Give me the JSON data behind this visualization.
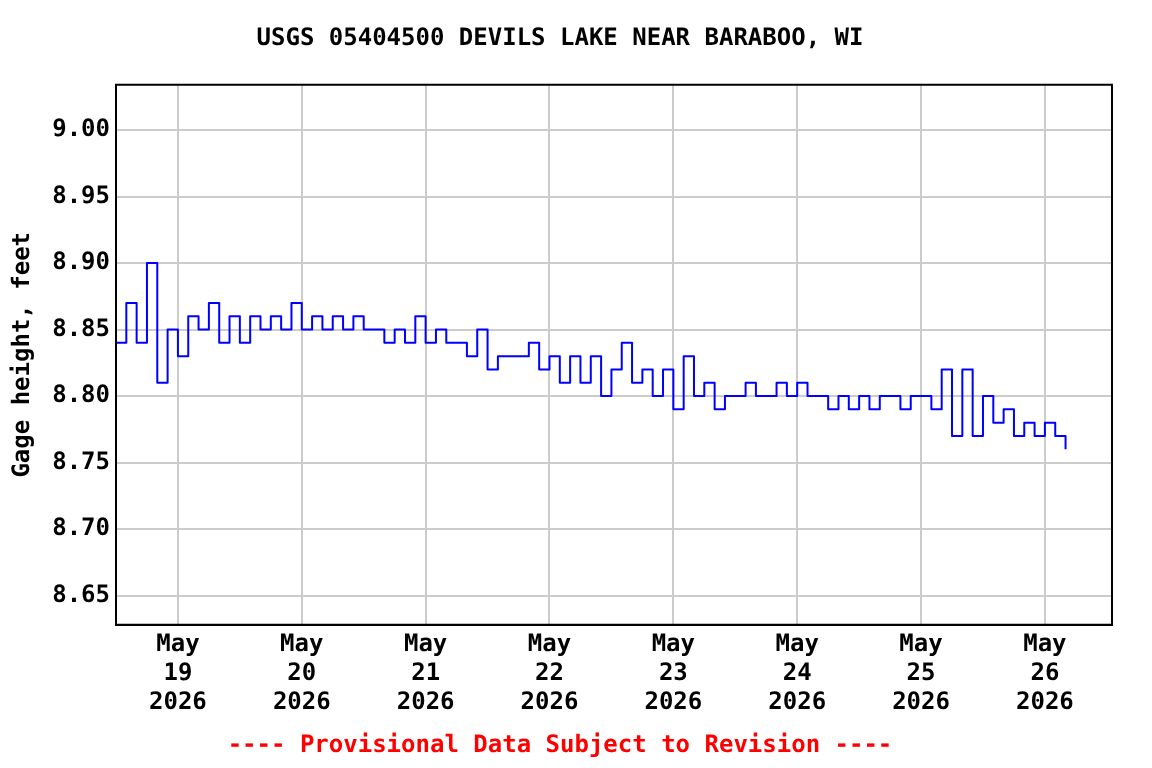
{
  "chart_data": {
    "type": "step",
    "title": "USGS 05404500 DEVILS LAKE NEAR BARABOO, WI",
    "ylabel": "Gage height, feet",
    "annotations": [
      "---- Provisional Data Subject to Revision ----"
    ],
    "x": [
      "2026-05-18T12:00",
      "2026-05-18T14:00",
      "2026-05-18T16:00",
      "2026-05-18T18:00",
      "2026-05-18T20:00",
      "2026-05-18T22:00",
      "2026-05-19T00:00",
      "2026-05-19T02:00",
      "2026-05-19T04:00",
      "2026-05-19T06:00",
      "2026-05-19T08:00",
      "2026-05-19T10:00",
      "2026-05-19T12:00",
      "2026-05-19T14:00",
      "2026-05-19T16:00",
      "2026-05-19T18:00",
      "2026-05-19T20:00",
      "2026-05-19T22:00",
      "2026-05-20T00:00",
      "2026-05-20T02:00",
      "2026-05-20T04:00",
      "2026-05-20T06:00",
      "2026-05-20T08:00",
      "2026-05-20T10:00",
      "2026-05-20T12:00",
      "2026-05-20T14:00",
      "2026-05-20T16:00",
      "2026-05-20T18:00",
      "2026-05-20T20:00",
      "2026-05-20T22:00",
      "2026-05-21T00:00",
      "2026-05-21T02:00",
      "2026-05-21T04:00",
      "2026-05-21T06:00",
      "2026-05-21T08:00",
      "2026-05-21T10:00",
      "2026-05-21T12:00",
      "2026-05-21T14:00",
      "2026-05-21T16:00",
      "2026-05-21T18:00",
      "2026-05-21T20:00",
      "2026-05-21T22:00",
      "2026-05-22T00:00",
      "2026-05-22T02:00",
      "2026-05-22T04:00",
      "2026-05-22T06:00",
      "2026-05-22T08:00",
      "2026-05-22T10:00",
      "2026-05-22T12:00",
      "2026-05-22T14:00",
      "2026-05-22T16:00",
      "2026-05-22T18:00",
      "2026-05-22T20:00",
      "2026-05-22T22:00",
      "2026-05-23T00:00",
      "2026-05-23T02:00",
      "2026-05-23T04:00",
      "2026-05-23T06:00",
      "2026-05-23T08:00",
      "2026-05-23T10:00",
      "2026-05-23T12:00",
      "2026-05-23T14:00",
      "2026-05-23T16:00",
      "2026-05-23T18:00",
      "2026-05-23T20:00",
      "2026-05-23T22:00",
      "2026-05-24T00:00",
      "2026-05-24T02:00",
      "2026-05-24T04:00",
      "2026-05-24T06:00",
      "2026-05-24T08:00",
      "2026-05-24T10:00",
      "2026-05-24T12:00",
      "2026-05-24T14:00",
      "2026-05-24T16:00",
      "2026-05-24T18:00",
      "2026-05-24T20:00",
      "2026-05-24T22:00",
      "2026-05-25T00:00",
      "2026-05-25T02:00",
      "2026-05-25T04:00",
      "2026-05-25T06:00",
      "2026-05-25T08:00",
      "2026-05-25T10:00",
      "2026-05-25T12:00",
      "2026-05-25T14:00",
      "2026-05-25T16:00",
      "2026-05-25T18:00",
      "2026-05-25T20:00",
      "2026-05-25T22:00",
      "2026-05-26T00:00",
      "2026-05-26T02:00",
      "2026-05-26T04:00"
    ],
    "series": [
      {
        "color": "#0000ff",
        "values": [
          8.84,
          8.87,
          8.84,
          8.9,
          8.81,
          8.85,
          8.83,
          8.86,
          8.85,
          8.87,
          8.84,
          8.86,
          8.84,
          8.86,
          8.85,
          8.86,
          8.85,
          8.87,
          8.85,
          8.86,
          8.85,
          8.86,
          8.85,
          8.86,
          8.85,
          8.85,
          8.84,
          8.85,
          8.84,
          8.86,
          8.84,
          8.85,
          8.84,
          8.84,
          8.83,
          8.85,
          8.82,
          8.83,
          8.83,
          8.83,
          8.84,
          8.82,
          8.83,
          8.81,
          8.83,
          8.81,
          8.83,
          8.8,
          8.82,
          8.84,
          8.81,
          8.82,
          8.8,
          8.82,
          8.79,
          8.83,
          8.8,
          8.81,
          8.79,
          8.8,
          8.8,
          8.81,
          8.8,
          8.8,
          8.81,
          8.8,
          8.81,
          8.8,
          8.8,
          8.79,
          8.8,
          8.79,
          8.8,
          8.79,
          8.8,
          8.8,
          8.79,
          8.8,
          8.8,
          8.79,
          8.82,
          8.77,
          8.82,
          8.77,
          8.8,
          8.78,
          8.79,
          8.77,
          8.78,
          8.77,
          8.78,
          8.77,
          8.76
        ]
      }
    ],
    "xlim": [
      "2026-05-18T12:00",
      "2026-05-26T13:00"
    ],
    "xticks": [
      {
        "value": "2026-05-19",
        "label": "May 19 2026"
      },
      {
        "value": "2026-05-20",
        "label": "May 20 2026"
      },
      {
        "value": "2026-05-21",
        "label": "May 21 2026"
      },
      {
        "value": "2026-05-22",
        "label": "May 22 2026"
      },
      {
        "value": "2026-05-23",
        "label": "May 23 2026"
      },
      {
        "value": "2026-05-24",
        "label": "May 24 2026"
      },
      {
        "value": "2026-05-25",
        "label": "May 25 2026"
      },
      {
        "value": "2026-05-26",
        "label": "May 26 2026"
      }
    ],
    "ylim": [
      8.628,
      9.034
    ],
    "yticks": [
      {
        "value": 8.65,
        "label": "8.65"
      },
      {
        "value": 8.7,
        "label": "8.70"
      },
      {
        "value": 8.75,
        "label": "8.75"
      },
      {
        "value": 8.8,
        "label": "8.80"
      },
      {
        "value": 8.85,
        "label": "8.85"
      },
      {
        "value": 8.9,
        "label": "8.90"
      },
      {
        "value": 8.95,
        "label": "8.95"
      },
      {
        "value": 9.0,
        "label": "9.00"
      }
    ],
    "grid": true,
    "legend": false
  }
}
